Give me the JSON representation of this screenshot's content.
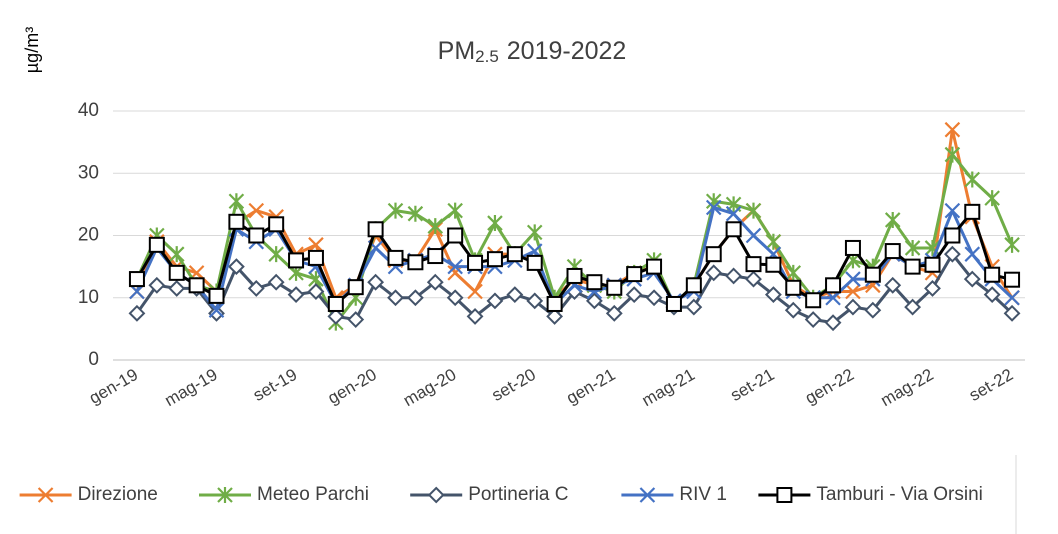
{
  "chart_data": {
    "type": "line",
    "title": [
      "PM",
      "2.5",
      "2019-2022"
    ],
    "y_label": "µg/m³",
    "categories": [
      "gen-19",
      null,
      null,
      null,
      "mag-19",
      null,
      null,
      null,
      "set-19",
      null,
      null,
      null,
      "gen-20",
      null,
      null,
      null,
      "mag-20",
      null,
      null,
      null,
      "set-20",
      null,
      null,
      null,
      "gen-21",
      null,
      null,
      null,
      "mag-21",
      null,
      null,
      null,
      "set-21",
      null,
      null,
      null,
      "gen-22",
      null,
      null,
      null,
      "mag-22",
      null,
      null,
      null,
      "set-22"
    ],
    "ylim": [
      0,
      40
    ],
    "yticks": [
      0,
      10,
      20,
      30,
      40
    ],
    "grid": true,
    "legend": "bottom",
    "series": [
      {
        "name": "Direzione",
        "color": "#ED7D31",
        "marker": "x",
        "values": [
          11,
          19,
          15,
          14,
          11,
          22,
          24,
          23,
          17,
          18.5,
          10,
          12,
          20,
          16,
          16,
          21,
          14,
          11,
          17,
          17,
          16,
          10,
          13,
          12,
          12,
          14,
          15,
          9,
          12,
          17,
          21,
          24,
          19,
          12,
          10,
          11,
          11,
          12,
          17,
          15,
          14,
          37,
          23,
          15,
          10
        ]
      },
      {
        "name": "Meteo Parchi",
        "color": "#70AD47",
        "marker": "star",
        "values": [
          13,
          20,
          17,
          12,
          11,
          25.5,
          20,
          17,
          14,
          13,
          6,
          10,
          21,
          24,
          23.5,
          21.5,
          24,
          16,
          22,
          17,
          20.5,
          10,
          15,
          12,
          11,
          14,
          16,
          9,
          12,
          25.5,
          25,
          24,
          19,
          14,
          10,
          12,
          16,
          15,
          22.5,
          18,
          18,
          33,
          29,
          26,
          18.5
        ]
      },
      {
        "name": "Portineria C",
        "color": "#44546A",
        "marker": "diamond",
        "values": [
          7.5,
          12,
          11.5,
          11.5,
          7.5,
          15,
          11.5,
          12.5,
          10.5,
          11,
          7,
          6.5,
          12.5,
          10,
          10,
          12.5,
          10,
          7,
          9.5,
          10.5,
          9.5,
          7,
          11,
          9.5,
          7.5,
          10.5,
          10,
          8.5,
          8.5,
          14,
          13.5,
          13,
          10.5,
          8,
          6.5,
          6,
          8.5,
          8,
          12,
          8.5,
          11.5,
          17,
          13,
          10.5,
          7.5
        ]
      },
      {
        "name": "RIV 1",
        "color": "#4472C4",
        "marker": "x",
        "values": [
          11,
          18,
          14,
          12,
          8,
          21,
          19,
          21,
          16,
          15,
          9,
          12,
          18,
          15,
          16,
          17,
          15,
          15,
          15,
          16,
          17.5,
          9,
          12,
          11,
          12,
          13,
          14,
          9.5,
          11,
          24.5,
          23.5,
          20,
          17,
          11,
          10,
          10,
          13,
          13,
          17,
          15,
          16,
          24,
          17,
          13,
          10
        ]
      },
      {
        "name": "Tamburi - Via Orsini",
        "color": "#000000",
        "marker": "square",
        "values": [
          13,
          18.5,
          14,
          12,
          10.3,
          22.2,
          20,
          21.8,
          16,
          16.4,
          9,
          11.7,
          21,
          16.4,
          15.7,
          16.7,
          20,
          15.6,
          16.2,
          17,
          15.6,
          9,
          13.5,
          12.5,
          11.6,
          13.8,
          15,
          9,
          12,
          17,
          21,
          15.4,
          15.3,
          11.6,
          9.6,
          12,
          18,
          13.7,
          17.5,
          15,
          15.3,
          20,
          23.8,
          13.7,
          12.9
        ]
      }
    ]
  }
}
